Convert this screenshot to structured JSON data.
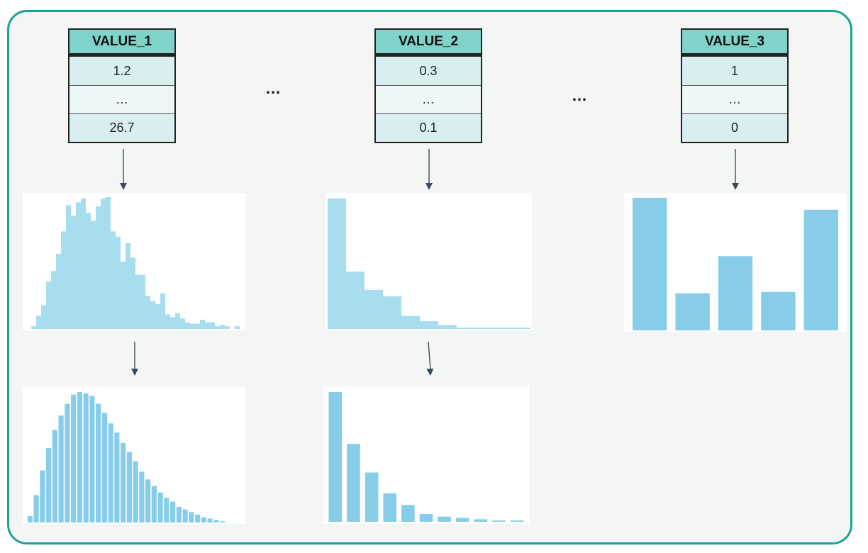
{
  "tables": [
    {
      "header": "VALUE_1",
      "rows": [
        "1.2",
        "…",
        "26.7"
      ]
    },
    {
      "header": "VALUE_2",
      "rows": [
        "0.3",
        "…",
        "0.1"
      ]
    },
    {
      "header": "VALUE_3",
      "rows": [
        "1",
        "…",
        "0"
      ]
    }
  ],
  "ellipses": [
    "…",
    "…"
  ],
  "colors": {
    "frame": "#1aa394",
    "header": "#7fd3c9",
    "raw_bar": "#a8dcef",
    "fitted_bar": "#87cdea",
    "arrow": "#3c4a58"
  },
  "chart_data": [
    {
      "type": "bar",
      "role": "raw-histogram-value-1",
      "values": [
        2,
        10,
        18,
        36,
        44,
        57,
        74,
        94,
        86,
        96,
        99,
        88,
        82,
        93,
        99,
        100,
        74,
        70,
        51,
        65,
        54,
        41,
        41,
        25,
        21,
        19,
        27,
        11,
        9,
        12,
        8,
        5,
        4,
        4,
        7,
        5,
        5,
        2,
        3,
        2,
        0,
        2,
        0
      ]
    },
    {
      "type": "bar",
      "role": "fitted-histogram-value-1",
      "values": [
        5,
        21,
        40,
        57,
        71,
        82,
        91,
        98,
        100,
        99,
        97,
        91,
        84,
        76,
        69,
        61,
        54,
        47,
        39,
        33,
        28,
        23,
        19,
        16,
        12,
        10,
        8,
        6,
        4,
        3,
        2,
        1
      ]
    },
    {
      "type": "bar",
      "role": "raw-histogram-value-2",
      "values": [
        100,
        44,
        30,
        25,
        10,
        6,
        3,
        1,
        1,
        1,
        1
      ]
    },
    {
      "type": "bar",
      "role": "fitted-histogram-value-2",
      "values": [
        100,
        60,
        38,
        22,
        13,
        6,
        4,
        3,
        2,
        1,
        1
      ]
    },
    {
      "type": "bar",
      "role": "categorical-value-3",
      "values": [
        100,
        28,
        56,
        29,
        91
      ]
    }
  ]
}
